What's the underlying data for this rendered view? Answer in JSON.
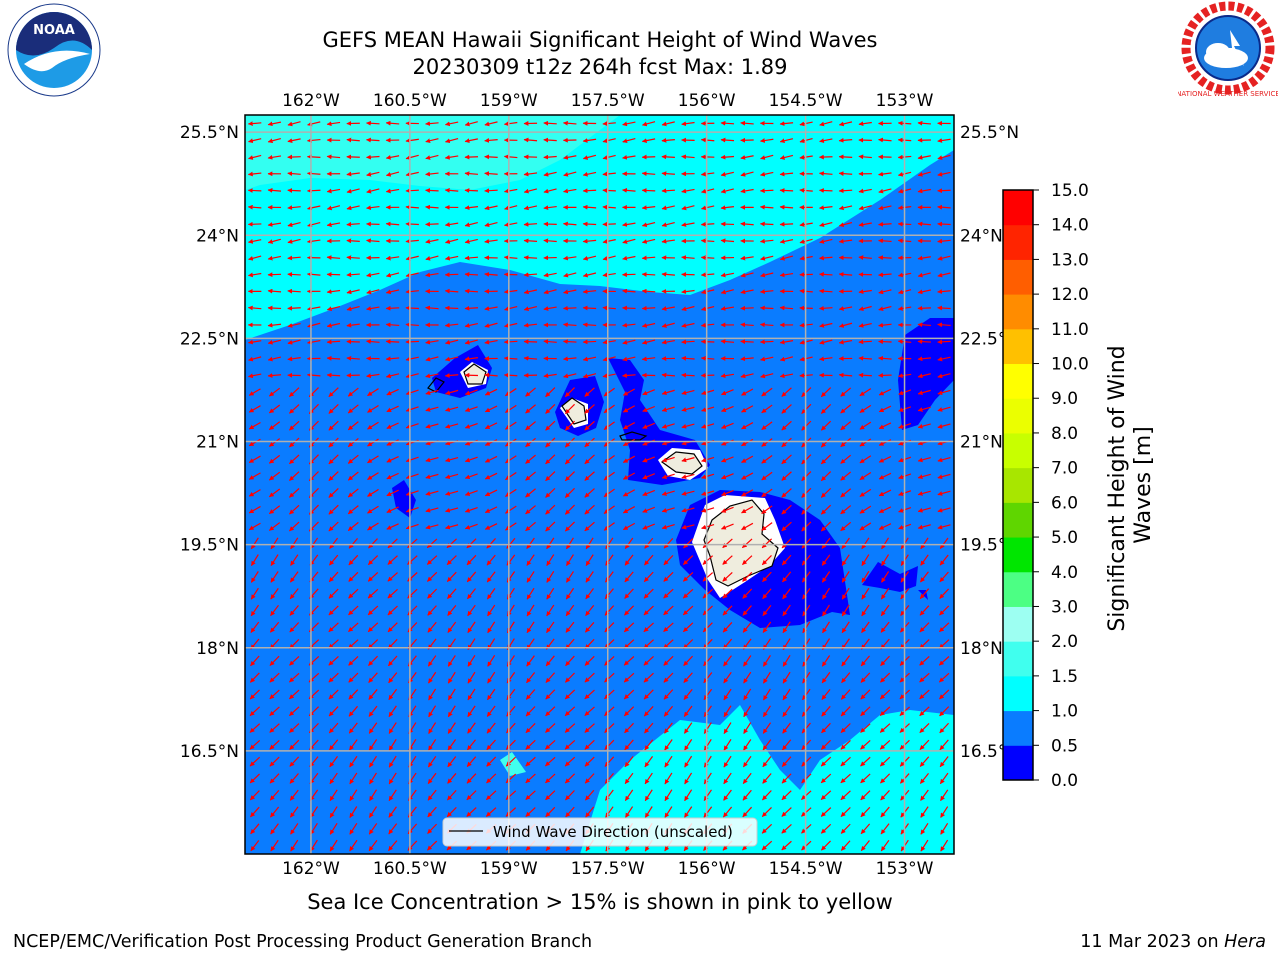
{
  "title_line1": "GEFS MEAN Hawaii Significant Height of Wind Waves",
  "title_line2": "20230309 t12z 264h fcst   Max: 1.89",
  "footer_note": "Sea Ice Concentration > 15% is shown in pink to yellow",
  "credit_left": "NCEP/EMC/Verification Post Processing Product Generation Branch",
  "credit_date": "11 Mar 2023 on",
  "credit_host": "Hera",
  "legend_label": "Wind Wave Direction (unscaled)",
  "colorbar_label_line1": "Significant Height of Wind",
  "colorbar_label_line2": "Waves [m]",
  "logos": {
    "left": "NOAA",
    "right": "NATIONAL WEATHER SERVICE"
  },
  "map": {
    "lon_labels": [
      "162°W",
      "160.5°W",
      "159°W",
      "157.5°W",
      "156°W",
      "154.5°W",
      "153°W"
    ],
    "lat_labels": [
      "25.5°N",
      "24°N",
      "22.5°N",
      "21°N",
      "19.5°N",
      "18°N",
      "16.5°N"
    ],
    "lon_ticks": [
      -162,
      -160.5,
      -159,
      -157.5,
      -156,
      -154.5,
      -153
    ],
    "lat_ticks": [
      25.5,
      24,
      22.5,
      21,
      19.5,
      18,
      16.5
    ],
    "extent": {
      "lon_min": -163,
      "lon_max": -152.25,
      "lat_min": 15.0,
      "lat_max": 25.75
    },
    "arrow_color": "#ff0000",
    "grid_color": "#b0b0b0"
  },
  "colorbar": {
    "levels": [
      "0.0",
      "0.5",
      "1.0",
      "1.5",
      "2.0",
      "3.0",
      "4.0",
      "5.0",
      "6.0",
      "7.0",
      "8.0",
      "9.0",
      "10.0",
      "11.0",
      "12.0",
      "13.0",
      "14.0",
      "15.0"
    ],
    "colors": [
      "#0000ff",
      "#0a7cff",
      "#00ffff",
      "#40ffee",
      "#9dfff2",
      "#4cff84",
      "#00e600",
      "#5fd600",
      "#a8e600",
      "#c8ff00",
      "#ebff00",
      "#ffff00",
      "#ffc000",
      "#ff8c00",
      "#ff5e00",
      "#ff2400",
      "#ff0000"
    ]
  },
  "fill_colors": {
    "low": "#0000ff",
    "mid": "#0a7cff",
    "high": "#00ffff",
    "land": "#efedde",
    "white": "#ffffff"
  }
}
